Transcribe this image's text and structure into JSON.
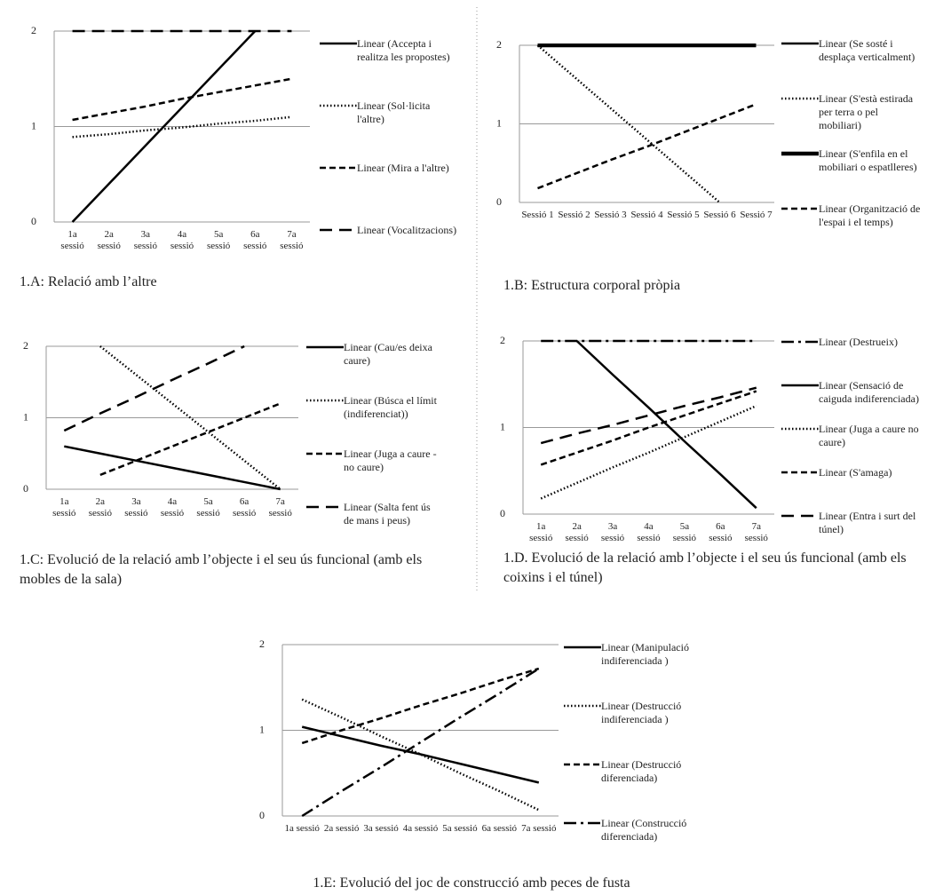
{
  "chart_data": [
    {
      "type": "line",
      "caption": "1.A: Relació amb l’altre",
      "categories": [
        "1a sessió",
        "2a sessió",
        "3a sessió",
        "4a sessió",
        "5a sessió",
        "6a sessió",
        "7a sessió"
      ],
      "ylim": [
        0,
        2
      ],
      "yticks": [
        0,
        1,
        2
      ],
      "grid": true,
      "series": [
        {
          "name": "Linear (Accepta i realitza les propostes)",
          "color": "#000000",
          "style": "solid",
          "values": [
            0,
            0.4,
            0.8,
            1.2,
            1.6,
            2.0,
            null
          ]
        },
        {
          "name": "Linear (Sol·licita l'altre)",
          "color": "#000000",
          "style": "dotted",
          "values": [
            0.89,
            0.92,
            0.96,
            0.99,
            1.03,
            1.06,
            1.1
          ]
        },
        {
          "name": "Linear (Mira a l'altre)",
          "color": "#000000",
          "style": "dashed",
          "values": [
            1.07,
            1.14,
            1.21,
            1.29,
            1.36,
            1.43,
            1.5
          ]
        },
        {
          "name": "Linear (Vocalitzacions)",
          "color": "#000000",
          "style": "longdash",
          "values": [
            2,
            2,
            2,
            2,
            2,
            2,
            2
          ]
        }
      ]
    },
    {
      "type": "line",
      "caption": "1.B: Estructura corporal pròpia",
      "categories": [
        "Sessió 1",
        "Sessió 2",
        "Sessió 3",
        "Sessió 4",
        "Sessió 5",
        "Sessió 6",
        "Sessió 7"
      ],
      "ylim": [
        0,
        2
      ],
      "yticks": [
        0,
        1,
        2
      ],
      "grid": true,
      "series": [
        {
          "name": "Linear (Se sosté i desplaça verticalment)",
          "color": "#000000",
          "style": "solid",
          "values": [
            2,
            2,
            2,
            2,
            2,
            2,
            2
          ]
        },
        {
          "name": "Linear (S'està estirada per terra o pel mobiliari)",
          "color": "#000000",
          "style": "dotted",
          "values": [
            2,
            1.6,
            1.2,
            0.8,
            0.4,
            0,
            null
          ]
        },
        {
          "name": "Linear (S'enfila en el mobiliari o espatlleres)",
          "color": "#000000",
          "style": "thick",
          "values": [
            2,
            2,
            2,
            2,
            2,
            2,
            2
          ]
        },
        {
          "name": "Linear (Organització de l'espai i el temps)",
          "color": "#000000",
          "style": "dashed",
          "values": [
            0.18,
            0.36,
            0.54,
            0.71,
            0.89,
            1.07,
            1.25
          ]
        }
      ]
    },
    {
      "type": "line",
      "caption": "1.C: Evolució de la relació amb l’objecte i el seu ús funcional (amb els mobles de la sala)",
      "categories": [
        "1a sessió",
        "2a sessió",
        "3a sessió",
        "4a sessió",
        "5a sessió",
        "6a sessió",
        "7a sessió"
      ],
      "ylim": [
        0,
        2
      ],
      "yticks": [
        0,
        1,
        2
      ],
      "grid": true,
      "series": [
        {
          "name": "Linear (Cau/es deixa caure)",
          "color": "#000000",
          "style": "solid",
          "values": [
            0.6,
            0.5,
            0.4,
            0.3,
            0.2,
            0.1,
            0
          ]
        },
        {
          "name": "Linear (Búsca el límit (indiferenciat))",
          "color": "#000000",
          "style": "dotted",
          "values": [
            null,
            2,
            1.6,
            1.2,
            0.8,
            0.4,
            0
          ]
        },
        {
          "name": "Linear (Juga a caure - no caure)",
          "color": "#000000",
          "style": "dashed",
          "values": [
            null,
            0.2,
            0.4,
            0.6,
            0.8,
            1.0,
            1.2
          ]
        },
        {
          "name": "Linear (Salta fent ús de mans i peus)",
          "color": "#000000",
          "style": "longdash",
          "values": [
            0.82,
            1.06,
            1.29,
            1.53,
            1.76,
            2.0,
            null
          ]
        }
      ]
    },
    {
      "type": "line",
      "caption": "1.D. Evolució de la relació amb l’objecte i el seu ús funcional (amb els coixins i el túnel)",
      "categories": [
        "1a sessió",
        "2a sessió",
        "3a sessió",
        "4a sessió",
        "5a sessió",
        "6a sessió",
        "7a sessió"
      ],
      "ylim": [
        0,
        2
      ],
      "yticks": [
        0,
        1,
        2
      ],
      "grid": true,
      "series": [
        {
          "name": "Linear (Destrueix)",
          "color": "#000000",
          "style": "dashdot",
          "values": [
            2,
            2,
            2,
            2,
            2,
            2,
            2
          ]
        },
        {
          "name": "Linear (Sensació de caiguda indiferenciada)",
          "color": "#000000",
          "style": "solid",
          "values": [
            null,
            2,
            1.61,
            1.23,
            0.84,
            0.46,
            0.07
          ]
        },
        {
          "name": "Linear (Juga a caure no caure)",
          "color": "#000000",
          "style": "dotted",
          "values": [
            0.18,
            0.36,
            0.54,
            0.71,
            0.89,
            1.07,
            1.25
          ]
        },
        {
          "name": "Linear (S'amaga)",
          "color": "#000000",
          "style": "dashed",
          "values": [
            0.57,
            0.71,
            0.85,
            1.0,
            1.14,
            1.28,
            1.42
          ]
        },
        {
          "name": "Linear (Entra i surt del túnel)",
          "color": "#000000",
          "style": "longdash",
          "values": [
            0.82,
            0.93,
            1.03,
            1.14,
            1.25,
            1.35,
            1.46
          ]
        }
      ]
    },
    {
      "type": "line",
      "caption": "1.E: Evolució del joc de construcció amb peces de fusta",
      "categories": [
        "1a sessió",
        "2a sessió",
        "3a sessió",
        "4a sessió",
        "5a sessió",
        "6a sessió",
        "7a sessió"
      ],
      "ylim": [
        0,
        2
      ],
      "yticks": [
        0,
        1,
        2
      ],
      "grid": true,
      "series": [
        {
          "name": "Linear (Manipulació indiferenciada )",
          "color": "#000000",
          "style": "solid",
          "values": [
            1.04,
            0.93,
            0.82,
            0.72,
            0.61,
            0.5,
            0.39
          ]
        },
        {
          "name": "Linear (Destrucció indiferenciada )",
          "color": "#000000",
          "style": "dotted",
          "values": [
            1.36,
            1.15,
            0.93,
            0.72,
            0.5,
            0.29,
            0.07
          ]
        },
        {
          "name": "Linear (Destrucció diferenciada)",
          "color": "#000000",
          "style": "dashed",
          "values": [
            0.85,
            1.0,
            1.14,
            1.29,
            1.43,
            1.58,
            1.72
          ]
        },
        {
          "name": "Linear (Construcció diferenciada)",
          "color": "#000000",
          "style": "dashdot",
          "values": [
            0,
            0.29,
            0.57,
            0.86,
            1.15,
            1.43,
            1.72
          ]
        }
      ]
    }
  ]
}
